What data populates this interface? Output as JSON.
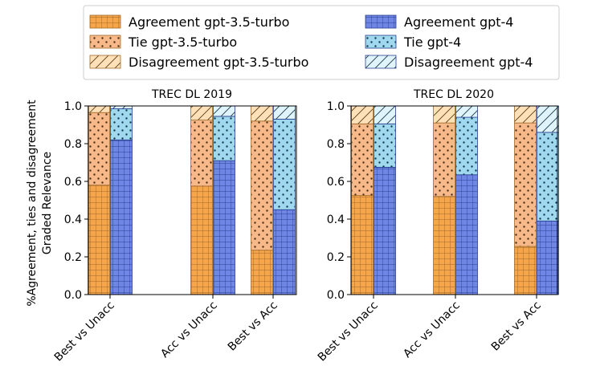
{
  "chart_data": [
    {
      "type": "bar",
      "stacked": true,
      "title": "TREC DL 2019",
      "ylabel_lines": [
        "%Agreement, ties and disagreement",
        "Graded Relevance"
      ],
      "ylim": [
        0,
        1.0
      ],
      "yticks": [
        0.0,
        0.2,
        0.4,
        0.6,
        0.8,
        1.0
      ],
      "categories": [
        "Best vs Unacc",
        "Acc vs Unacc",
        "Best vs Acc"
      ],
      "series": [
        {
          "name": "Agreement gpt-3.5-turbo",
          "model": "gpt-3.5-turbo",
          "kind": "agreement",
          "values": [
            0.58,
            0.575,
            0.235
          ]
        },
        {
          "name": "Tie gpt-3.5-turbo",
          "model": "gpt-3.5-turbo",
          "kind": "tie",
          "values": [
            0.385,
            0.35,
            0.685
          ]
        },
        {
          "name": "Disagreement gpt-3.5-turbo",
          "model": "gpt-3.5-turbo",
          "kind": "disagreement",
          "values": [
            0.035,
            0.075,
            0.08
          ]
        },
        {
          "name": "Agreement gpt-4",
          "model": "gpt-4",
          "kind": "agreement",
          "values": [
            0.82,
            0.71,
            0.45
          ]
        },
        {
          "name": "Tie gpt-4",
          "model": "gpt-4",
          "kind": "tie",
          "values": [
            0.165,
            0.235,
            0.48
          ]
        },
        {
          "name": "Disagreement gpt-4",
          "model": "gpt-4",
          "kind": "disagreement",
          "values": [
            0.015,
            0.055,
            0.07
          ]
        }
      ]
    },
    {
      "type": "bar",
      "stacked": true,
      "title": "TREC DL 2020",
      "ylim": [
        0,
        1.0
      ],
      "yticks": [
        0.0,
        0.2,
        0.4,
        0.6,
        0.8,
        1.0
      ],
      "categories": [
        "Best vs Unacc",
        "Acc vs Unacc",
        "Best vs Acc"
      ],
      "series": [
        {
          "name": "Agreement gpt-3.5-turbo",
          "model": "gpt-3.5-turbo",
          "kind": "agreement",
          "values": [
            0.525,
            0.52,
            0.255
          ]
        },
        {
          "name": "Tie gpt-3.5-turbo",
          "model": "gpt-3.5-turbo",
          "kind": "tie",
          "values": [
            0.38,
            0.39,
            0.655
          ]
        },
        {
          "name": "Disagreement gpt-3.5-turbo",
          "model": "gpt-3.5-turbo",
          "kind": "disagreement",
          "values": [
            0.095,
            0.09,
            0.09
          ]
        },
        {
          "name": "Agreement gpt-4",
          "model": "gpt-4",
          "kind": "agreement",
          "values": [
            0.675,
            0.635,
            0.39
          ]
        },
        {
          "name": "Tie gpt-4",
          "model": "gpt-4",
          "kind": "tie",
          "values": [
            0.23,
            0.305,
            0.47
          ]
        },
        {
          "name": "Disagreement gpt-4",
          "model": "gpt-4",
          "kind": "disagreement",
          "values": [
            0.095,
            0.06,
            0.14
          ]
        }
      ]
    }
  ],
  "legend": {
    "placement": "top-center",
    "entries": [
      {
        "label": "Agreement gpt-3.5-turbo",
        "model": "gpt-3.5-turbo",
        "kind": "agreement"
      },
      {
        "label": "Tie gpt-3.5-turbo",
        "model": "gpt-3.5-turbo",
        "kind": "tie"
      },
      {
        "label": "Disagreement gpt-3.5-turbo",
        "model": "gpt-3.5-turbo",
        "kind": "disagreement"
      },
      {
        "label": "Agreement gpt-4",
        "model": "gpt-4",
        "kind": "agreement"
      },
      {
        "label": "Tie gpt-4",
        "model": "gpt-4",
        "kind": "tie"
      },
      {
        "label": "Disagreement gpt-4",
        "model": "gpt-4",
        "kind": "disagreement"
      }
    ]
  },
  "colors": {
    "gpt-3.5-turbo": {
      "agreement": "#f5a64a",
      "tie": "#f7b88a",
      "disagreement": "#fde0b7",
      "edge": "#a06a2a"
    },
    "gpt-4": {
      "agreement": "#6f86e4",
      "tie": "#9fd8ef",
      "disagreement": "#dff5fb",
      "edge": "#2a3f8f"
    }
  }
}
